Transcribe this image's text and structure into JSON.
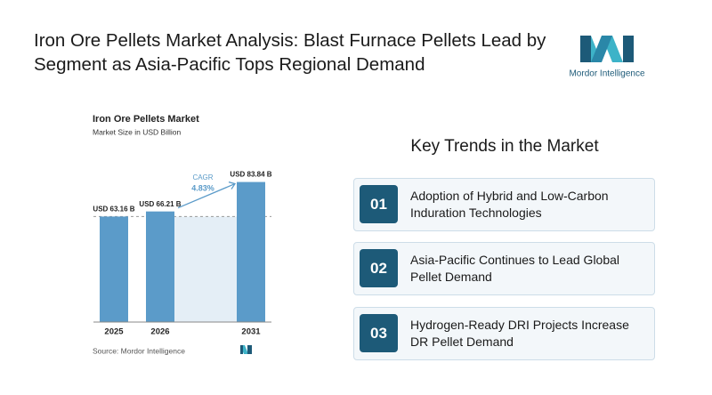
{
  "header": {
    "title": "Iron Ore Pellets Market Analysis: Blast Furnace Pellets Lead by Segment as Asia-Pacific Tops Regional Demand",
    "logo_text": "Mordor Intelligence"
  },
  "chart_data": {
    "type": "bar",
    "title": "Iron Ore Pellets Market",
    "subtitle": "Market Size in USD Billion",
    "categories": [
      "2025",
      "2026",
      "2031"
    ],
    "values": [
      63.16,
      66.21,
      83.84
    ],
    "value_labels": [
      "USD 63.16 B",
      "USD 66.21 B",
      "USD 83.84 B"
    ],
    "color": "#5b9bc9",
    "ylim": [
      0,
      90
    ],
    "annotation": {
      "label": "CAGR",
      "value": "4.83%"
    },
    "source": "Source: Mordor Intelligence"
  },
  "key_trends": {
    "heading": "Key Trends in the Market",
    "items": [
      {
        "number": "01",
        "text": "Adoption of Hybrid and Low-Carbon Induration Technologies"
      },
      {
        "number": "02",
        "text": "Asia-Pacific Continues to Lead Global Pellet Demand"
      },
      {
        "number": "03",
        "text": "Hydrogen-Ready DRI Projects Increase DR Pellet Demand"
      }
    ]
  }
}
